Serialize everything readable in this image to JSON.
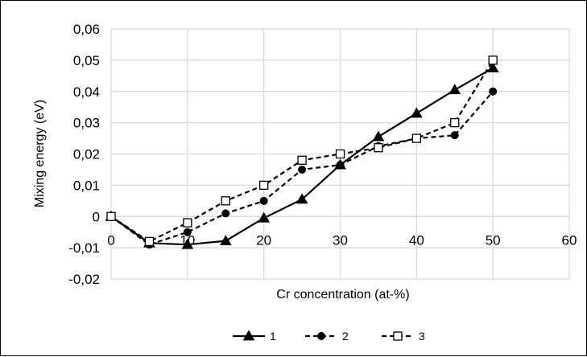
{
  "chart_data": {
    "type": "line",
    "title": "",
    "xlabel": "Cr concentration (at-%)",
    "ylabel": "Mixing energy (eV)",
    "xlim": [
      0,
      60
    ],
    "ylim": [
      -0.02,
      0.06
    ],
    "x_ticks": [
      "0",
      "10",
      "20",
      "30",
      "40",
      "50",
      "60"
    ],
    "y_ticks": [
      "-0,02",
      "-0,01",
      "0",
      "0,01",
      "0,02",
      "0,03",
      "0,04",
      "0,05",
      "0,06"
    ],
    "grid": true,
    "legend_position": "bottom",
    "series": [
      {
        "name": "1",
        "line_style": "solid",
        "marker": "triangle",
        "color": "#000000",
        "x": [
          0,
          5,
          10,
          15,
          20,
          25,
          30,
          35,
          40,
          45,
          50
        ],
        "y": [
          0,
          -0.0085,
          -0.009,
          -0.0078,
          -0.0005,
          0.0055,
          0.0165,
          0.0255,
          0.033,
          0.0405,
          0.0475
        ]
      },
      {
        "name": "2",
        "line_style": "dashed",
        "marker": "circle",
        "color": "#000000",
        "x": [
          0,
          5,
          10,
          15,
          20,
          25,
          30,
          35,
          40,
          45,
          50
        ],
        "y": [
          0,
          -0.009,
          -0.005,
          0.001,
          0.005,
          0.015,
          0.0165,
          0.0225,
          0.025,
          0.026,
          0.04
        ]
      },
      {
        "name": "3",
        "line_style": "dashed",
        "marker": "square-open",
        "color": "#000000",
        "x": [
          0,
          5,
          10,
          15,
          20,
          25,
          30,
          35,
          40,
          45,
          50
        ],
        "y": [
          0,
          -0.008,
          -0.002,
          0.005,
          0.01,
          0.018,
          0.02,
          0.022,
          0.025,
          0.03,
          0.05
        ]
      }
    ]
  }
}
